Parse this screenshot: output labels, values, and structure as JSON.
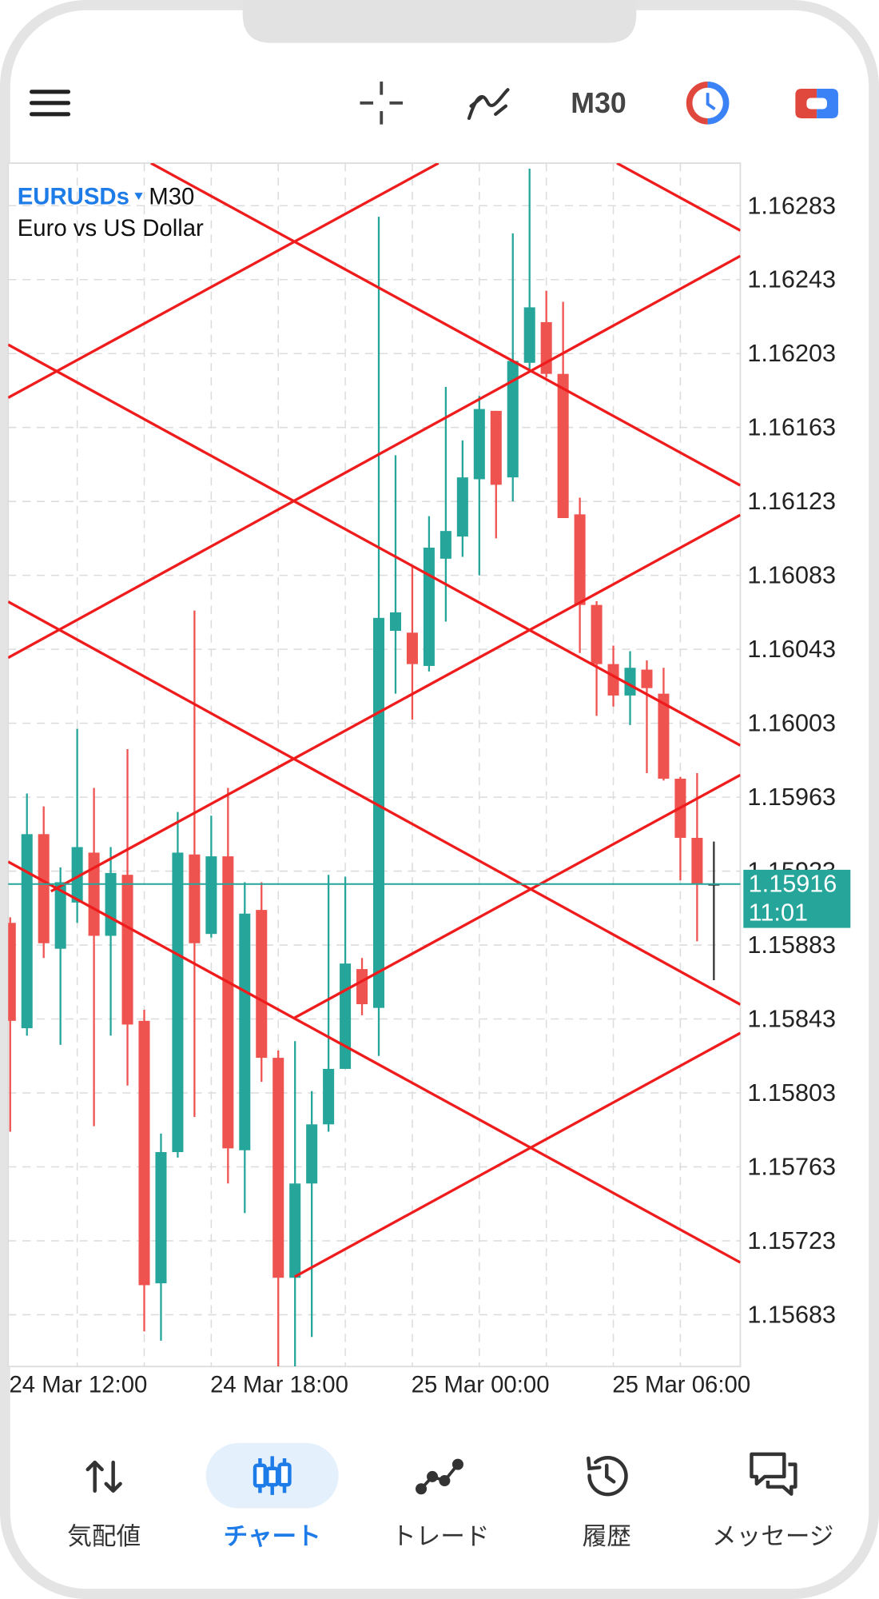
{
  "toolbar": {
    "timeframe": "M30"
  },
  "chart_data": {
    "type": "candlestick",
    "symbol": "EURUSDs",
    "timeframe": "M30",
    "description": "Euro vs US Dollar",
    "categories": [
      "24 Mar 12:00",
      null,
      null,
      null,
      null,
      null,
      null,
      null,
      null,
      null,
      null,
      null,
      "24 Mar 18:00",
      null,
      null,
      null,
      null,
      null,
      null,
      null,
      null,
      null,
      null,
      null,
      "25 Mar 00:00",
      null,
      null,
      null,
      null,
      null,
      null,
      null,
      null,
      null,
      null,
      null,
      "25 Mar 06:00",
      null,
      null,
      null,
      null,
      null,
      null
    ],
    "open": [
      1.15895,
      1.15838,
      1.15943,
      1.15881,
      1.15906,
      1.15933,
      1.15888,
      1.15921,
      1.15842,
      1.157,
      1.15771,
      1.15932,
      1.15889,
      1.15931,
      1.15772,
      1.15902,
      1.15822,
      1.15703,
      1.15754,
      1.15786,
      1.15816,
      1.1587,
      1.15849,
      1.16053,
      1.16052,
      1.16034,
      1.16092,
      1.16104,
      1.16135,
      1.16172,
      1.16136,
      1.16198,
      1.1622,
      1.16192,
      1.16116,
      1.16067,
      1.16035,
      1.16018,
      1.16032,
      1.16019,
      1.15973,
      1.15941,
      1.15916
    ],
    "high": [
      1.15898,
      1.15965,
      1.15958,
      1.15925,
      1.16,
      1.15968,
      1.15936,
      1.15989,
      1.15848,
      1.15781,
      1.15955,
      1.16064,
      1.15953,
      1.15968,
      1.15917,
      1.15917,
      1.15826,
      1.15831,
      1.15804,
      1.15921,
      1.1592,
      1.15876,
      1.16277,
      1.16148,
      1.16088,
      1.16115,
      1.16185,
      1.16156,
      1.1618,
      1.16172,
      1.16268,
      1.16303,
      1.16237,
      1.16231,
      1.16125,
      1.16069,
      1.16045,
      1.16042,
      1.16037,
      1.16033,
      1.15974,
      1.15976,
      1.15939
    ],
    "low": [
      1.15782,
      1.15834,
      1.15876,
      1.15829,
      1.15895,
      1.15785,
      1.15834,
      1.15807,
      1.15674,
      1.15669,
      1.15768,
      1.1579,
      1.15887,
      1.15754,
      1.15738,
      1.15809,
      1.15655,
      1.15655,
      1.15671,
      1.15782,
      1.15816,
      1.15845,
      1.15823,
      1.16019,
      1.16005,
      1.16031,
      1.16058,
      1.16093,
      1.16083,
      1.16103,
      1.16123,
      1.16193,
      1.1619,
      1.16114,
      1.16041,
      1.16007,
      1.16012,
      1.16002,
      1.15976,
      1.15972,
      1.15918,
      1.15885,
      1.15864
    ],
    "close": [
      1.15842,
      1.15943,
      1.15884,
      1.15917,
      1.15936,
      1.15888,
      1.15922,
      1.1584,
      1.15699,
      1.15771,
      1.15933,
      1.15884,
      1.15931,
      1.15773,
      1.159,
      1.15822,
      1.15703,
      1.15754,
      1.15786,
      1.15816,
      1.15873,
      1.15851,
      1.1606,
      1.16063,
      1.16035,
      1.16098,
      1.16107,
      1.16136,
      1.16173,
      1.16132,
      1.16199,
      1.16228,
      1.16192,
      1.16114,
      1.16067,
      1.16035,
      1.16018,
      1.16033,
      1.16022,
      1.15973,
      1.15941,
      1.15916,
      1.15916
    ],
    "up_color": "#26a69a",
    "down_color": "#ef5350",
    "flat_color": "#333333",
    "ylim": [
      1.15655,
      1.16306
    ],
    "yticks": [
      1.16283,
      1.16243,
      1.16203,
      1.16163,
      1.16123,
      1.16083,
      1.16043,
      1.16003,
      1.15963,
      1.15923,
      1.15883,
      1.15843,
      1.15803,
      1.15763,
      1.15723,
      1.15683
    ],
    "grid": true,
    "current_price": 1.15916,
    "current_price_color": "#26a69a",
    "countdown": "11:01"
  },
  "tabs": [
    {
      "label": "気配値"
    },
    {
      "label": "チャート"
    },
    {
      "label": "トレード"
    },
    {
      "label": "履歴"
    },
    {
      "label": "メッセージ"
    }
  ],
  "active_tab": 1
}
